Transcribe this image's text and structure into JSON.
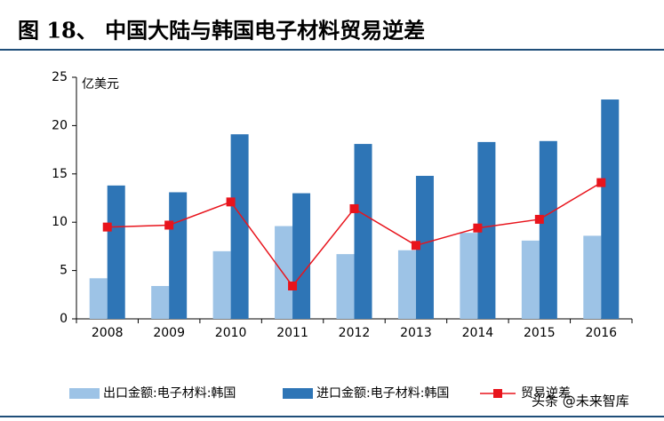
{
  "chart_data": {
    "type": "bar_line",
    "title": "图 18、 中国大陆与韩国电子材料贸易逆差",
    "y_label": "亿美元",
    "categories": [
      "2008",
      "2009",
      "2010",
      "2011",
      "2012",
      "2013",
      "2014",
      "2015",
      "2016"
    ],
    "series": [
      {
        "name": "出口金额:电子材料:韩国",
        "color": "#9dc3e6",
        "type": "bar",
        "values": [
          4.2,
          3.4,
          7.0,
          9.6,
          6.7,
          7.1,
          8.9,
          8.1,
          8.6
        ]
      },
      {
        "name": "进口金额:电子材料:韩国",
        "color": "#2e75b6",
        "type": "bar",
        "values": [
          13.8,
          13.1,
          19.1,
          13.0,
          18.1,
          14.8,
          18.3,
          18.4,
          22.7
        ]
      },
      {
        "name": "贸易逆差",
        "color": "#e8141c",
        "type": "line",
        "values": [
          9.5,
          9.7,
          12.1,
          3.4,
          11.4,
          7.6,
          9.4,
          10.3,
          14.1
        ]
      }
    ],
    "ylim": [
      0,
      25
    ],
    "yticks": [
      0,
      5,
      10,
      15,
      20,
      25
    ],
    "grid": false,
    "watermark": "头条 @未来智库"
  }
}
